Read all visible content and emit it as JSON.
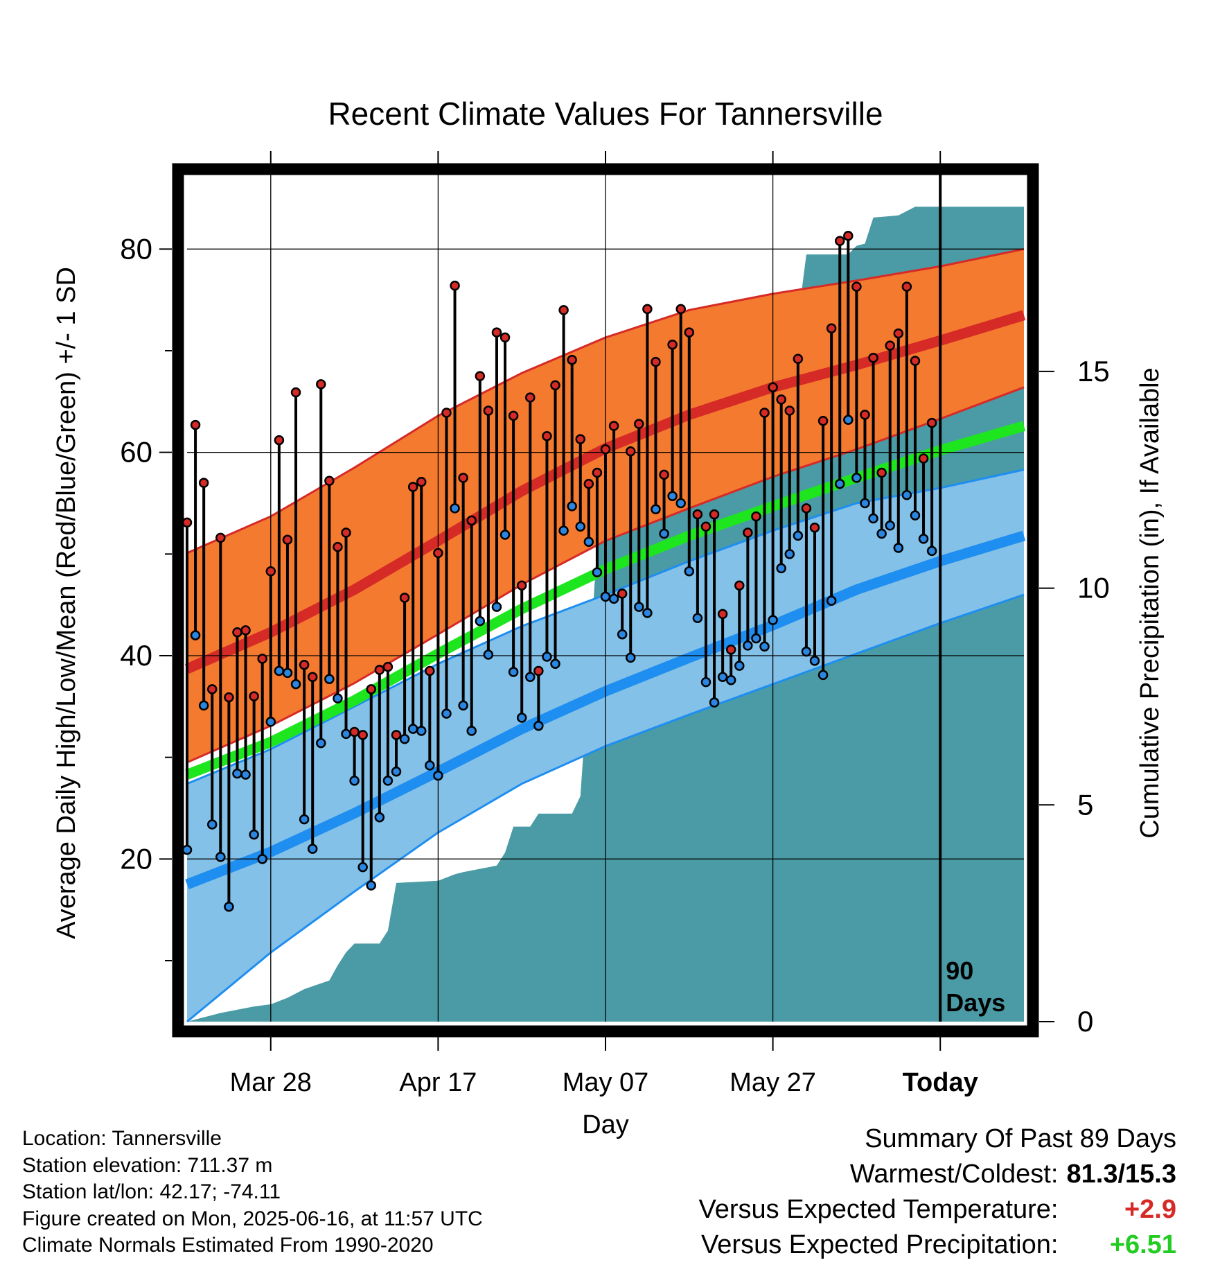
{
  "chart_data": {
    "type": "line",
    "title": "Recent Climate Values For Tannersville",
    "xlabel": "Day",
    "ylabel": "Average Daily High/Low/Mean (Red/Blue/Green) +/- 1 SD",
    "y2label": "Cumulative Precipitation (in), If Available",
    "x_tick_labels": [
      "Mar 28",
      "Apr 17",
      "May 07",
      "May 27",
      "Today"
    ],
    "x_tick_days": [
      10,
      30,
      50,
      70,
      90
    ],
    "xlim": [
      0,
      100
    ],
    "ylim": [
      4,
      88
    ],
    "y_ticks": [
      20,
      40,
      60,
      80
    ],
    "y2lim": [
      0,
      19.7
    ],
    "y2_ticks": [
      0,
      5,
      10,
      15
    ],
    "today_marker": {
      "day": 90,
      "label_line1": "90",
      "label_line2": "Days"
    },
    "grid": true,
    "colors": {
      "high_band": "#f47a30",
      "high_mean": "#d62a27",
      "low_band": "#84c1e8",
      "low_mean": "#1e8ef0",
      "daily_mean": "#1ee61e",
      "precip": "#4a9ba5",
      "high_dot": "#d62a27",
      "low_dot": "#2a86e0"
    },
    "normal_high": [
      {
        "day": 0,
        "mean": 38.7,
        "upper": 50.1,
        "lower": 29.5
      },
      {
        "day": 10,
        "mean": 42.3,
        "upper": 53.7,
        "lower": 33.1
      },
      {
        "day": 20,
        "mean": 46.5,
        "upper": 58.5,
        "lower": 37.3
      },
      {
        "day": 30,
        "mean": 51.3,
        "upper": 63.6,
        "lower": 42.1
      },
      {
        "day": 40,
        "mean": 56.2,
        "upper": 67.8,
        "lower": 47.0
      },
      {
        "day": 50,
        "mean": 60.4,
        "upper": 71.3,
        "lower": 51.3
      },
      {
        "day": 60,
        "mean": 63.7,
        "upper": 74.0,
        "lower": 54.5
      },
      {
        "day": 70,
        "mean": 66.4,
        "upper": 75.6,
        "lower": 57.6
      },
      {
        "day": 80,
        "mean": 68.6,
        "upper": 76.9,
        "lower": 60.3
      },
      {
        "day": 90,
        "mean": 71.0,
        "upper": 78.3,
        "lower": 63.3
      },
      {
        "day": 100,
        "mean": 73.5,
        "upper": 80.0,
        "lower": 66.4
      }
    ],
    "normal_low": [
      {
        "day": 0,
        "mean": 17.5,
        "upper": 27.4,
        "lower": 4.0
      },
      {
        "day": 10,
        "mean": 20.7,
        "upper": 30.8,
        "lower": 10.8
      },
      {
        "day": 20,
        "mean": 24.5,
        "upper": 35.0,
        "lower": 16.8
      },
      {
        "day": 30,
        "mean": 28.6,
        "upper": 39.2,
        "lower": 22.6
      },
      {
        "day": 40,
        "mean": 32.8,
        "upper": 42.9,
        "lower": 27.4
      },
      {
        "day": 50,
        "mean": 36.5,
        "upper": 46.0,
        "lower": 31.1
      },
      {
        "day": 60,
        "mean": 39.8,
        "upper": 49.3,
        "lower": 34.2
      },
      {
        "day": 70,
        "mean": 43.0,
        "upper": 52.3,
        "lower": 37.2
      },
      {
        "day": 80,
        "mean": 46.5,
        "upper": 55.0,
        "lower": 40.2
      },
      {
        "day": 90,
        "mean": 49.3,
        "upper": 56.5,
        "lower": 43.2
      },
      {
        "day": 100,
        "mean": 51.8,
        "upper": 58.3,
        "lower": 46.0
      }
    ],
    "normal_mean": [
      {
        "day": 0,
        "mean": 28.3
      },
      {
        "day": 10,
        "mean": 31.5
      },
      {
        "day": 20,
        "mean": 35.6
      },
      {
        "day": 30,
        "mean": 40.2
      },
      {
        "day": 40,
        "mean": 44.6
      },
      {
        "day": 50,
        "mean": 48.5
      },
      {
        "day": 60,
        "mean": 51.8
      },
      {
        "day": 70,
        "mean": 54.7
      },
      {
        "day": 80,
        "mean": 57.5
      },
      {
        "day": 90,
        "mean": 60.2
      },
      {
        "day": 100,
        "mean": 62.6
      }
    ],
    "daily": [
      {
        "day": 0,
        "high": 53.1,
        "low": 20.9
      },
      {
        "day": 1,
        "high": 62.7,
        "low": 42.0
      },
      {
        "day": 2,
        "high": 57.0,
        "low": 35.1
      },
      {
        "day": 3,
        "high": 36.7,
        "low": 23.4
      },
      {
        "day": 4,
        "high": 51.6,
        "low": 20.2
      },
      {
        "day": 5,
        "high": 35.9,
        "low": 15.3
      },
      {
        "day": 6,
        "high": 42.3,
        "low": 28.4
      },
      {
        "day": 7,
        "high": 42.5,
        "low": 28.3
      },
      {
        "day": 8,
        "high": 36.0,
        "low": 22.4
      },
      {
        "day": 9,
        "high": 39.7,
        "low": 20.0
      },
      {
        "day": 10,
        "high": 48.3,
        "low": 33.5
      },
      {
        "day": 11,
        "high": 61.2,
        "low": 38.5
      },
      {
        "day": 12,
        "high": 51.4,
        "low": 38.3
      },
      {
        "day": 13,
        "high": 65.9,
        "low": 37.2
      },
      {
        "day": 14,
        "high": 39.1,
        "low": 23.9
      },
      {
        "day": 15,
        "high": 37.9,
        "low": 21.0
      },
      {
        "day": 16,
        "high": 66.7,
        "low": 31.4
      },
      {
        "day": 17,
        "high": 57.2,
        "low": 37.7
      },
      {
        "day": 18,
        "high": 50.7,
        "low": 35.8
      },
      {
        "day": 19,
        "high": 52.1,
        "low": 32.3
      },
      {
        "day": 20,
        "high": 32.5,
        "low": 27.7
      },
      {
        "day": 21,
        "high": 32.2,
        "low": 19.2
      },
      {
        "day": 22,
        "high": 36.7,
        "low": 17.4
      },
      {
        "day": 23,
        "high": 38.6,
        "low": 24.1
      },
      {
        "day": 24,
        "high": 38.9,
        "low": 27.7
      },
      {
        "day": 25,
        "high": 32.2,
        "low": 28.6
      },
      {
        "day": 26,
        "high": 45.7,
        "low": 31.8
      },
      {
        "day": 27,
        "high": 56.6,
        "low": 32.8
      },
      {
        "day": 28,
        "high": 57.1,
        "low": 32.6
      },
      {
        "day": 29,
        "high": 38.5,
        "low": 29.2
      },
      {
        "day": 30,
        "high": 50.1,
        "low": 28.2
      },
      {
        "day": 31,
        "high": 63.9,
        "low": 34.3
      },
      {
        "day": 32,
        "high": 76.4,
        "low": 54.5
      },
      {
        "day": 33,
        "high": 57.5,
        "low": 35.1
      },
      {
        "day": 34,
        "high": 53.3,
        "low": 32.6
      },
      {
        "day": 35,
        "high": 67.5,
        "low": 43.4
      },
      {
        "day": 36,
        "high": 64.1,
        "low": 40.1
      },
      {
        "day": 37,
        "high": 71.8,
        "low": 44.8
      },
      {
        "day": 38,
        "high": 71.3,
        "low": 51.9
      },
      {
        "day": 39,
        "high": 63.6,
        "low": 38.4
      },
      {
        "day": 40,
        "high": 46.9,
        "low": 33.9
      },
      {
        "day": 41,
        "high": 65.4,
        "low": 37.9
      },
      {
        "day": 42,
        "high": 38.5,
        "low": 33.1
      },
      {
        "day": 43,
        "high": 61.6,
        "low": 39.9
      },
      {
        "day": 44,
        "high": 66.6,
        "low": 39.2
      },
      {
        "day": 45,
        "high": 74.0,
        "low": 52.3
      },
      {
        "day": 46,
        "high": 69.1,
        "low": 54.7
      },
      {
        "day": 47,
        "high": 61.3,
        "low": 52.7
      },
      {
        "day": 48,
        "high": 56.9,
        "low": 51.2
      },
      {
        "day": 49,
        "high": 58.0,
        "low": 48.2
      },
      {
        "day": 50,
        "high": 60.3,
        "low": 45.8
      },
      {
        "day": 51,
        "high": 62.6,
        "low": 45.6
      },
      {
        "day": 52,
        "high": 46.1,
        "low": 42.1
      },
      {
        "day": 53,
        "high": 60.1,
        "low": 39.8
      },
      {
        "day": 54,
        "high": 62.8,
        "low": 44.8
      },
      {
        "day": 55,
        "high": 74.1,
        "low": 44.2
      },
      {
        "day": 56,
        "high": 68.9,
        "low": 54.4
      },
      {
        "day": 57,
        "high": 57.8,
        "low": 52.0
      },
      {
        "day": 58,
        "high": 70.6,
        "low": 55.7
      },
      {
        "day": 59,
        "high": 74.1,
        "low": 55.0
      },
      {
        "day": 60,
        "high": 71.8,
        "low": 48.3
      },
      {
        "day": 61,
        "high": 53.9,
        "low": 43.7
      },
      {
        "day": 62,
        "high": 52.7,
        "low": 37.4
      },
      {
        "day": 63,
        "high": 53.9,
        "low": 35.4
      },
      {
        "day": 64,
        "high": 44.1,
        "low": 37.9
      },
      {
        "day": 65,
        "high": 40.6,
        "low": 37.6
      },
      {
        "day": 66,
        "high": 46.9,
        "low": 39.0
      },
      {
        "day": 67,
        "high": 52.1,
        "low": 41.0
      },
      {
        "day": 68,
        "high": 53.7,
        "low": 41.7
      },
      {
        "day": 69,
        "high": 63.9,
        "low": 40.9
      },
      {
        "day": 70,
        "high": 66.4,
        "low": 43.5
      },
      {
        "day": 71,
        "high": 65.2,
        "low": 48.6
      },
      {
        "day": 72,
        "high": 64.1,
        "low": 50.0
      },
      {
        "day": 73,
        "high": 69.2,
        "low": 51.8
      },
      {
        "day": 74,
        "high": 54.5,
        "low": 40.4
      },
      {
        "day": 75,
        "high": 52.6,
        "low": 39.5
      },
      {
        "day": 76,
        "high": 63.1,
        "low": 38.1
      },
      {
        "day": 77,
        "high": 72.2,
        "low": 45.4
      },
      {
        "day": 78,
        "high": 80.8,
        "low": 56.9
      },
      {
        "day": 79,
        "high": 81.3,
        "low": 63.2
      },
      {
        "day": 80,
        "high": 76.3,
        "low": 57.5
      },
      {
        "day": 81,
        "high": 63.7,
        "low": 55.0
      },
      {
        "day": 82,
        "high": 69.3,
        "low": 53.5
      },
      {
        "day": 83,
        "high": 58.0,
        "low": 52.0
      },
      {
        "day": 84,
        "high": 70.5,
        "low": 52.8
      },
      {
        "day": 85,
        "high": 71.7,
        "low": 50.6
      },
      {
        "day": 86,
        "high": 76.3,
        "low": 55.8
      },
      {
        "day": 87,
        "high": 69.0,
        "low": 53.8
      },
      {
        "day": 88,
        "high": 59.4,
        "low": 51.5
      },
      {
        "day": 89,
        "high": 62.9,
        "low": 50.3
      }
    ],
    "precip_cumulative": [
      {
        "day": 0,
        "value": 0.0
      },
      {
        "day": 4,
        "value": 0.2
      },
      {
        "day": 8,
        "value": 0.35
      },
      {
        "day": 10,
        "value": 0.4
      },
      {
        "day": 12,
        "value": 0.55
      },
      {
        "day": 14,
        "value": 0.75
      },
      {
        "day": 17,
        "value": 0.95
      },
      {
        "day": 18,
        "value": 1.3
      },
      {
        "day": 19,
        "value": 1.6
      },
      {
        "day": 20,
        "value": 1.8
      },
      {
        "day": 23,
        "value": 1.8
      },
      {
        "day": 24,
        "value": 2.1
      },
      {
        "day": 25,
        "value": 3.2
      },
      {
        "day": 30,
        "value": 3.25
      },
      {
        "day": 32,
        "value": 3.4
      },
      {
        "day": 33,
        "value": 3.45
      },
      {
        "day": 37,
        "value": 3.6
      },
      {
        "day": 38,
        "value": 3.9
      },
      {
        "day": 39,
        "value": 4.5
      },
      {
        "day": 41,
        "value": 4.5
      },
      {
        "day": 42,
        "value": 4.8
      },
      {
        "day": 46,
        "value": 4.8
      },
      {
        "day": 47,
        "value": 5.2
      },
      {
        "day": 48,
        "value": 8.0
      },
      {
        "day": 49,
        "value": 11.0
      },
      {
        "day": 50,
        "value": 11.6
      },
      {
        "day": 51,
        "value": 11.6
      },
      {
        "day": 52,
        "value": 12.5
      },
      {
        "day": 53,
        "value": 14.8
      },
      {
        "day": 56,
        "value": 14.8
      },
      {
        "day": 57,
        "value": 15.2
      },
      {
        "day": 59,
        "value": 15.2
      },
      {
        "day": 60,
        "value": 15.3
      },
      {
        "day": 63,
        "value": 15.3
      },
      {
        "day": 64,
        "value": 15.8
      },
      {
        "day": 65,
        "value": 16.0
      },
      {
        "day": 67,
        "value": 16.1
      },
      {
        "day": 71,
        "value": 16.15
      },
      {
        "day": 73,
        "value": 16.2
      },
      {
        "day": 74,
        "value": 17.7
      },
      {
        "day": 79,
        "value": 17.7
      },
      {
        "day": 80,
        "value": 17.9
      },
      {
        "day": 81,
        "value": 17.95
      },
      {
        "day": 82,
        "value": 18.55
      },
      {
        "day": 85,
        "value": 18.6
      },
      {
        "day": 87,
        "value": 18.8
      },
      {
        "day": 100,
        "value": 18.8
      }
    ]
  },
  "location": {
    "location_line": "Location: Tannersville",
    "elevation_line": "Station elevation: 711.37 m",
    "latlon_line": "Station lat/lon: 42.17; -74.11",
    "created_line": "Figure created on Mon, 2025-06-16, at 11:57 UTC",
    "normals_line": "Climate Normals Estimated From 1990-2020"
  },
  "summary": {
    "title": "Summary Of Past 89 Days",
    "warmest_coldest_label": "Warmest/Coldest:",
    "warmest_coldest_value": "81.3/15.3",
    "temp_label": "Versus Expected Temperature:",
    "temp_value": "+2.9",
    "temp_color": "#d62a27",
    "precip_label": "Versus Expected Precipitation:",
    "precip_value": "+6.51",
    "precip_color": "#22cc22"
  }
}
